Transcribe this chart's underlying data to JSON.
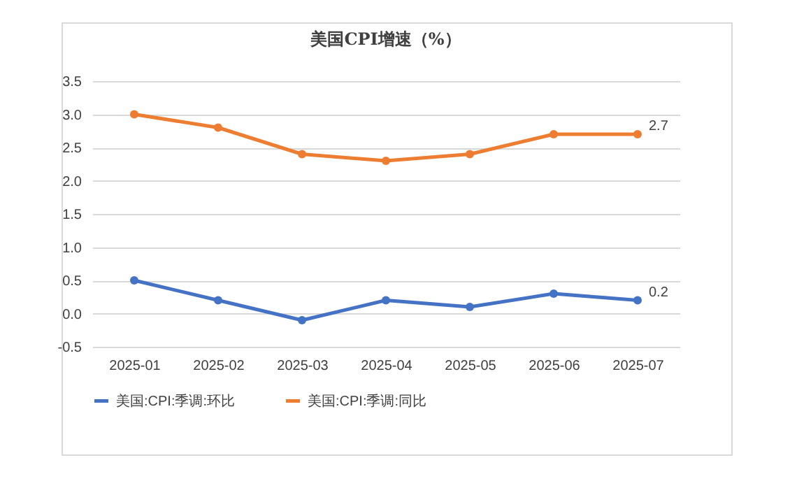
{
  "chart_data": {
    "type": "line",
    "title": "美国CPI增速（%）",
    "categories": [
      "2025-01",
      "2025-02",
      "2025-03",
      "2025-04",
      "2025-05",
      "2025-06",
      "2025-07"
    ],
    "series": [
      {
        "name": "美国:CPI:季调:环比",
        "color": "#4472c4",
        "values": [
          0.5,
          0.2,
          -0.1,
          0.2,
          0.1,
          0.3,
          0.2
        ],
        "value_labels": [
          null,
          null,
          null,
          null,
          null,
          null,
          "0.2"
        ]
      },
      {
        "name": "美国:CPI:季调:同比",
        "color": "#ed7d31",
        "values": [
          3.0,
          2.8,
          2.4,
          2.3,
          2.4,
          2.7,
          2.7
        ],
        "value_labels": [
          null,
          null,
          null,
          null,
          null,
          null,
          "2.7"
        ]
      }
    ],
    "ylim": [
      -0.5,
      3.5
    ],
    "yticks": [
      -0.5,
      {
        "value": 0,
        "label": "0.0"
      },
      0.5,
      {
        "value": 1,
        "label": "1.0"
      },
      1.5,
      {
        "value": 2,
        "label": "2.0"
      },
      2.5,
      {
        "value": 3,
        "label": "3.0"
      },
      3.5
    ],
    "grid": "y",
    "legend": "bottom",
    "marker": "circle",
    "line_style": "solid"
  }
}
